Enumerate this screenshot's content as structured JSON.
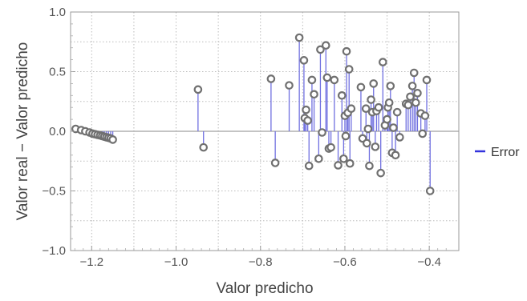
{
  "chart_data": {
    "type": "scatter",
    "xlabel": "Valor predicho",
    "ylabel": "Valor real − Valor predicho",
    "xlim": [
      -1.25,
      -0.33
    ],
    "ylim": [
      -1.0,
      1.0
    ],
    "x_ticks": [
      -1.2,
      -1.0,
      -0.8,
      -0.6,
      -0.4
    ],
    "x_tick_labels": [
      "−1.2",
      "−1.0",
      "−0.8",
      "−0.6",
      "−0.4"
    ],
    "y_ticks": [
      -1.0,
      -0.5,
      0.0,
      0.5,
      1.0
    ],
    "y_tick_labels": [
      "−1.0",
      "−0.5",
      "0.0",
      "0.5",
      "1.0"
    ],
    "grid": true,
    "legend_position": "right",
    "series": [
      {
        "name": "Error",
        "color": "#3333dd",
        "stem_color": "#7070e0",
        "marker_color": "#707070",
        "points": [
          [
            -1.238,
            0.02
          ],
          [
            -1.225,
            0.01
          ],
          [
            -1.215,
            0.0
          ],
          [
            -1.205,
            -0.01
          ],
          [
            -1.198,
            -0.02
          ],
          [
            -1.192,
            -0.025
          ],
          [
            -1.186,
            -0.03
          ],
          [
            -1.18,
            -0.035
          ],
          [
            -1.175,
            -0.04
          ],
          [
            -1.17,
            -0.045
          ],
          [
            -1.165,
            -0.05
          ],
          [
            -1.16,
            -0.055
          ],
          [
            -1.155,
            -0.06
          ],
          [
            -1.15,
            -0.07
          ],
          [
            -0.948,
            0.35
          ],
          [
            -0.935,
            -0.135
          ],
          [
            -0.775,
            0.44
          ],
          [
            -0.765,
            -0.265
          ],
          [
            -0.732,
            0.385
          ],
          [
            -0.708,
            0.785
          ],
          [
            -0.697,
            0.595
          ],
          [
            -0.695,
            0.11
          ],
          [
            -0.692,
            0.18
          ],
          [
            -0.688,
            0.09
          ],
          [
            -0.685,
            -0.29
          ],
          [
            -0.678,
            0.43
          ],
          [
            -0.673,
            0.31
          ],
          [
            -0.662,
            -0.23
          ],
          [
            -0.658,
            0.685
          ],
          [
            -0.654,
            -0.01
          ],
          [
            -0.645,
            0.72
          ],
          [
            -0.642,
            0.45
          ],
          [
            -0.638,
            -0.145
          ],
          [
            -0.633,
            -0.135
          ],
          [
            -0.625,
            0.43
          ],
          [
            -0.616,
            -0.285
          ],
          [
            -0.607,
            0.3
          ],
          [
            -0.603,
            -0.23
          ],
          [
            -0.6,
            0.13
          ],
          [
            -0.598,
            -0.04
          ],
          [
            -0.596,
            0.67
          ],
          [
            -0.593,
            0.155
          ],
          [
            -0.59,
            0.52
          ],
          [
            -0.588,
            -0.27
          ],
          [
            -0.585,
            0.19
          ],
          [
            -0.562,
            0.37
          ],
          [
            -0.558,
            -0.06
          ],
          [
            -0.55,
            0.19
          ],
          [
            -0.548,
            -0.1
          ],
          [
            -0.545,
            0.02
          ],
          [
            -0.542,
            -0.29
          ],
          [
            -0.538,
            0.265
          ],
          [
            -0.535,
            0.16
          ],
          [
            -0.532,
            0.4
          ],
          [
            -0.528,
            -0.13
          ],
          [
            -0.525,
            0.17
          ],
          [
            -0.52,
            0.2
          ],
          [
            -0.515,
            -0.35
          ],
          [
            -0.51,
            0.58
          ],
          [
            -0.505,
            0.05
          ],
          [
            -0.5,
            0.1
          ],
          [
            -0.498,
            0.2
          ],
          [
            -0.495,
            0.24
          ],
          [
            -0.492,
            0.38
          ],
          [
            -0.488,
            -0.18
          ],
          [
            -0.485,
            0.03
          ],
          [
            -0.48,
            -0.2
          ],
          [
            -0.476,
            0.16
          ],
          [
            -0.47,
            -0.05
          ],
          [
            -0.455,
            0.23
          ],
          [
            -0.45,
            0.22
          ],
          [
            -0.445,
            0.29
          ],
          [
            -0.44,
            0.38
          ],
          [
            -0.436,
            0.49
          ],
          [
            -0.432,
            0.24
          ],
          [
            -0.428,
            0.32
          ],
          [
            -0.42,
            0.15
          ],
          [
            -0.416,
            -0.02
          ],
          [
            -0.41,
            0.13
          ],
          [
            -0.406,
            0.43
          ],
          [
            -0.398,
            -0.5
          ]
        ]
      }
    ]
  }
}
